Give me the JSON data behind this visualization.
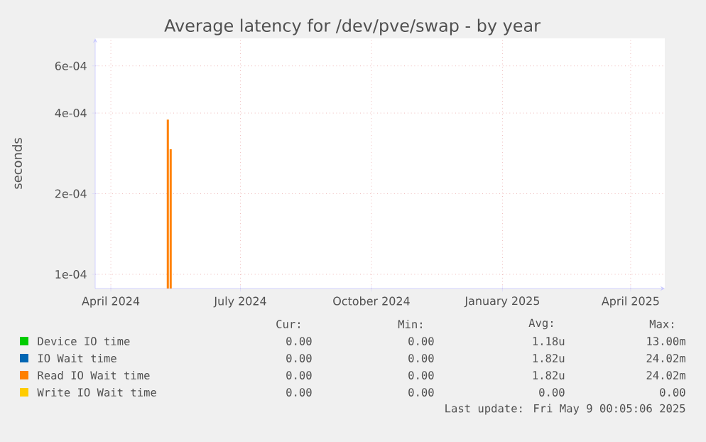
{
  "chart_data": {
    "type": "bar",
    "title": "Average latency for /dev/pve/swap - by year",
    "ylabel": "seconds",
    "log": "y",
    "grid": true,
    "legend": "bottom",
    "x": [
      "2024-05-11",
      "2024-05-13"
    ],
    "xlim": [
      "2024-03-21",
      "2025-04-25"
    ],
    "xticks": [
      {
        "value": "2024-04-01",
        "label": "April 2024"
      },
      {
        "value": "2024-07-01",
        "label": "July 2024"
      },
      {
        "value": "2024-10-01",
        "label": "October 2024"
      },
      {
        "value": "2025-01-01",
        "label": "January 2025"
      },
      {
        "value": "2025-04-01",
        "label": "April 2025"
      }
    ],
    "ylim": [
      8.85e-05,
      0.00076
    ],
    "yticks": [
      {
        "value": 0.0001,
        "label": "1e-04"
      },
      {
        "value": 0.0002,
        "label": "2e-04"
      },
      {
        "value": 0.0004,
        "label": "4e-04"
      },
      {
        "value": 0.0006,
        "label": "6e-04"
      }
    ],
    "series": [
      {
        "name": "Device IO time",
        "color": "#00cc00",
        "values": [
          null,
          null
        ]
      },
      {
        "name": "IO Wait time",
        "color": "#0066b3",
        "values": [
          null,
          null
        ]
      },
      {
        "name": "Read IO Wait time",
        "color": "#ff8000",
        "values": [
          0.000378,
          0.000293
        ]
      },
      {
        "name": "Write IO Wait time",
        "color": "#ffcc00",
        "values": [
          null,
          null
        ]
      }
    ],
    "annotations": [
      "Cur:",
      "Min:",
      "Avg:",
      "Max:",
      "0.00",
      "0.00",
      "1.18u",
      "13.00m",
      "0.00",
      "0.00",
      "1.82u",
      "24.02m",
      "0.00",
      "0.00",
      "1.82u",
      "24.02m",
      "0.00",
      "0.00",
      "0.00",
      "0.00",
      "Last update: Fri May  9 00:05:06 2025"
    ]
  }
}
